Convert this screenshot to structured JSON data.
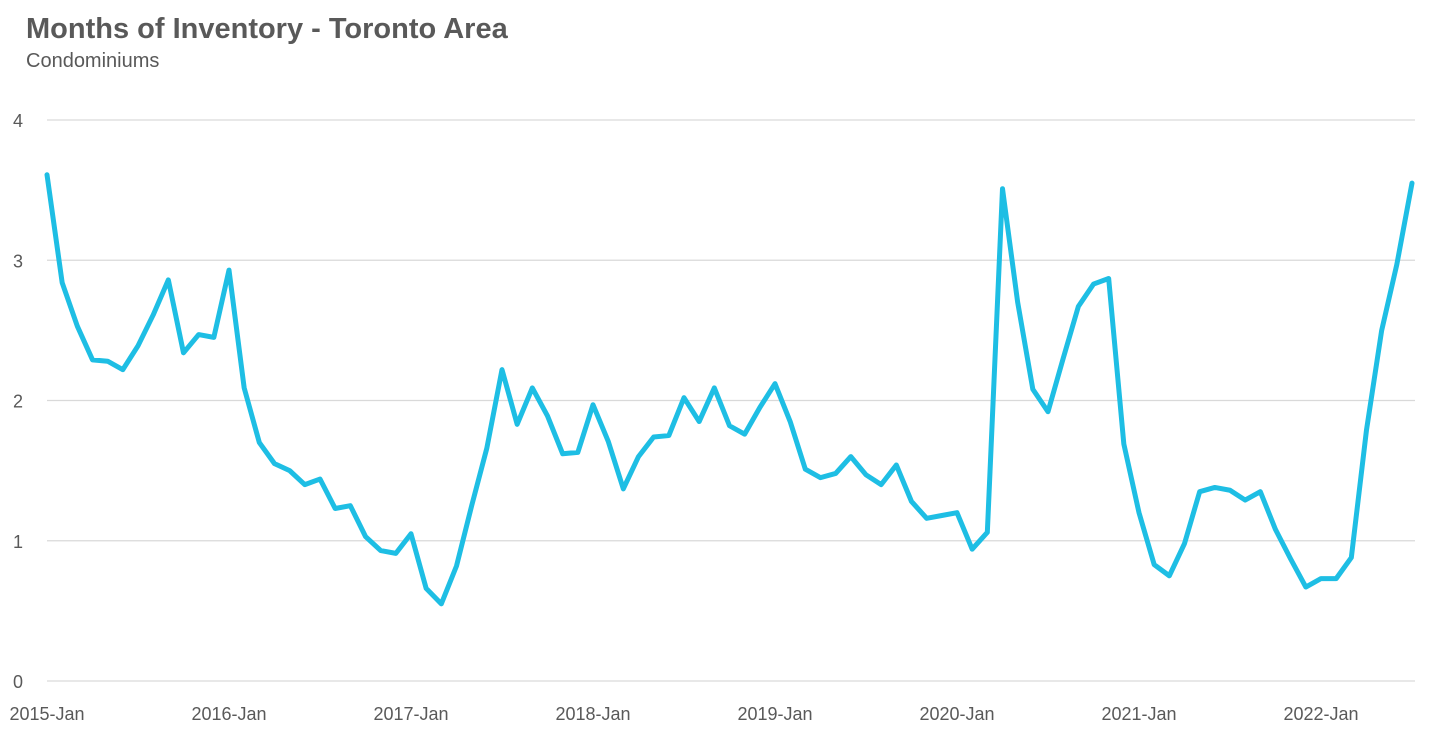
{
  "chart_data": {
    "type": "line",
    "title": "Months of Inventory - Toronto Area",
    "subtitle": "Condominiums",
    "categories": [
      "2015-Jan",
      null,
      null,
      null,
      null,
      null,
      null,
      null,
      null,
      null,
      null,
      null,
      "2016-Jan",
      null,
      null,
      null,
      null,
      null,
      null,
      null,
      null,
      null,
      null,
      null,
      "2017-Jan",
      null,
      null,
      null,
      null,
      null,
      null,
      null,
      null,
      null,
      null,
      null,
      "2018-Jan",
      null,
      null,
      null,
      null,
      null,
      null,
      null,
      null,
      null,
      null,
      null,
      "2019-Jan",
      null,
      null,
      null,
      null,
      null,
      null,
      null,
      null,
      null,
      null,
      null,
      "2020-Jan",
      null,
      null,
      null,
      null,
      null,
      null,
      null,
      null,
      null,
      null,
      null,
      "2021-Jan",
      null,
      null,
      null,
      null,
      null,
      null,
      null,
      null,
      null,
      null,
      null,
      "2022-Jan",
      null,
      null,
      null,
      null,
      null,
      null
    ],
    "series": [
      {
        "name": "Condominiums",
        "color": "#1ebee4",
        "values": [
          3.61,
          2.84,
          2.53,
          2.29,
          2.28,
          2.22,
          2.39,
          2.61,
          2.86,
          2.34,
          2.47,
          2.45,
          2.93,
          2.09,
          1.7,
          1.55,
          1.5,
          1.4,
          1.44,
          1.23,
          1.25,
          1.03,
          0.93,
          0.91,
          1.05,
          0.66,
          0.55,
          0.82,
          1.25,
          1.66,
          2.22,
          1.83,
          2.09,
          1.89,
          1.62,
          1.63,
          1.97,
          1.71,
          1.37,
          1.6,
          1.74,
          1.75,
          2.02,
          1.85,
          2.09,
          1.82,
          1.76,
          1.95,
          2.12,
          1.85,
          1.51,
          1.45,
          1.48,
          1.6,
          1.47,
          1.4,
          1.54,
          1.28,
          1.16,
          1.18,
          1.2,
          0.94,
          1.06,
          3.51,
          2.7,
          2.08,
          1.92,
          2.3,
          2.67,
          2.83,
          2.87,
          1.69,
          1.2,
          0.83,
          0.75,
          0.98,
          1.35,
          1.38,
          1.36,
          1.29,
          1.35,
          1.08,
          0.87,
          0.67,
          0.73,
          0.73,
          0.88,
          1.79,
          2.5,
          2.97,
          3.55
        ]
      }
    ],
    "ylim": [
      0,
      4
    ],
    "yticks": [
      0,
      1,
      2,
      3,
      4
    ],
    "grid": true
  }
}
